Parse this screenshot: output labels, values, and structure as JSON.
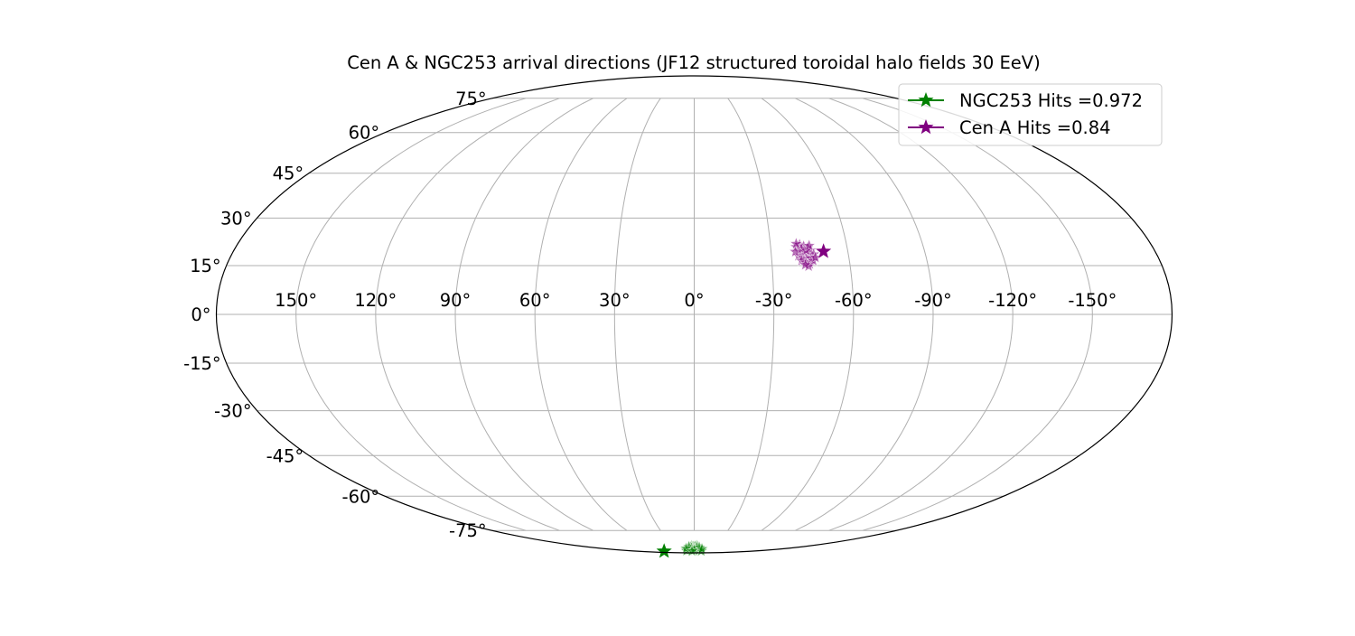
{
  "chart_data": {
    "type": "scatter",
    "projection": "mollweide",
    "title": "Cen A & NGC253 arrival directions (JF12 structured toroidal halo fields 30 EeV)",
    "x_axis": {
      "range": [
        180,
        -180
      ],
      "ticks": [
        150,
        120,
        90,
        60,
        30,
        0,
        -30,
        -60,
        -90,
        -120,
        -150
      ],
      "tick_labels": [
        "150°",
        "120°",
        "90°",
        "60°",
        "30°",
        "0°",
        "-30°",
        "-60°",
        "-90°",
        "-120°",
        "-150°"
      ]
    },
    "y_axis": {
      "range": [
        -90,
        90
      ],
      "ticks": [
        75,
        60,
        45,
        30,
        15,
        0,
        -15,
        -30,
        -45,
        -60,
        -75
      ],
      "tick_labels": [
        "75°",
        "60°",
        "45°",
        "30°",
        "15°",
        "0°",
        "-15°",
        "-30°",
        "-45°",
        "-60°",
        "-75°"
      ]
    },
    "grid": true,
    "legend": {
      "placement": "top-right",
      "entries": [
        {
          "label": "NGC253 Hits =0.972",
          "color": "#008000",
          "marker": "star"
        },
        {
          "label": "Cen A Hits =0.84",
          "color": "#800080",
          "marker": "star"
        }
      ]
    },
    "series": [
      {
        "name": "NGC253 Hits =0.972",
        "color": "#008000",
        "source": {
          "lon": 97.4,
          "lat": -87.9
        },
        "arrivals": [
          {
            "lon": 4.0,
            "lat": -83.8
          },
          {
            "lon": 2.0,
            "lat": -84.2
          },
          {
            "lon": 0.0,
            "lat": -84.5
          },
          {
            "lon": -2.0,
            "lat": -84.0
          },
          {
            "lon": -4.0,
            "lat": -83.7
          },
          {
            "lon": -6.0,
            "lat": -84.3
          },
          {
            "lon": 6.0,
            "lat": -84.6
          },
          {
            "lon": 8.0,
            "lat": -85.0
          },
          {
            "lon": -8.0,
            "lat": -85.2
          },
          {
            "lon": 10.0,
            "lat": -85.5
          },
          {
            "lon": -10.0,
            "lat": -85.8
          },
          {
            "lon": 12.0,
            "lat": -86.2
          },
          {
            "lon": -12.0,
            "lat": -86.5
          },
          {
            "lon": 3.0,
            "lat": -86.0
          },
          {
            "lon": -3.0,
            "lat": -86.3
          },
          {
            "lon": 14.0,
            "lat": -87.0
          },
          {
            "lon": -14.0,
            "lat": -87.2
          },
          {
            "lon": 1.0,
            "lat": -87.5
          },
          {
            "lon": 18.0,
            "lat": -86.8
          },
          {
            "lon": -18.0,
            "lat": -87.0
          },
          {
            "lon": 5.0,
            "lat": -85.2
          },
          {
            "lon": -5.0,
            "lat": -85.0
          },
          {
            "lon": 9.0,
            "lat": -84.3
          },
          {
            "lon": -9.0,
            "lat": -84.8
          },
          {
            "lon": 22.0,
            "lat": -87.5
          },
          {
            "lon": -22.0,
            "lat": -87.8
          },
          {
            "lon": 0.0,
            "lat": -86.8
          },
          {
            "lon": 16.0,
            "lat": -85.6
          },
          {
            "lon": -16.0,
            "lat": -85.9
          },
          {
            "lon": 7.0,
            "lat": -87.8
          }
        ]
      },
      {
        "name": "Cen A Hits =0.84",
        "color": "#800080",
        "source": {
          "lon": -50.5,
          "lat": 19.4
        },
        "arrivals": [
          {
            "lon": -40.0,
            "lat": 20.8
          },
          {
            "lon": -41.5,
            "lat": 21.5
          },
          {
            "lon": -43.0,
            "lat": 21.0
          },
          {
            "lon": -44.5,
            "lat": 20.5
          },
          {
            "lon": -41.0,
            "lat": 19.5
          },
          {
            "lon": -42.5,
            "lat": 19.0
          },
          {
            "lon": -44.0,
            "lat": 18.5
          },
          {
            "lon": -45.5,
            "lat": 19.8
          },
          {
            "lon": -46.5,
            "lat": 18.5
          },
          {
            "lon": -40.5,
            "lat": 18.0
          },
          {
            "lon": -42.0,
            "lat": 17.5
          },
          {
            "lon": -43.5,
            "lat": 17.0
          },
          {
            "lon": -45.0,
            "lat": 17.3
          },
          {
            "lon": -41.5,
            "lat": 16.5
          },
          {
            "lon": -43.0,
            "lat": 16.0
          },
          {
            "lon": -44.5,
            "lat": 15.5
          },
          {
            "lon": -46.0,
            "lat": 16.5
          },
          {
            "lon": -47.0,
            "lat": 17.5
          },
          {
            "lon": -39.5,
            "lat": 19.3
          },
          {
            "lon": -42.0,
            "lat": 20.2
          },
          {
            "lon": -43.8,
            "lat": 19.7
          },
          {
            "lon": -45.2,
            "lat": 21.2
          },
          {
            "lon": -40.2,
            "lat": 21.8
          },
          {
            "lon": -44.0,
            "lat": 14.8
          },
          {
            "lon": -42.8,
            "lat": 15.2
          }
        ]
      }
    ]
  }
}
